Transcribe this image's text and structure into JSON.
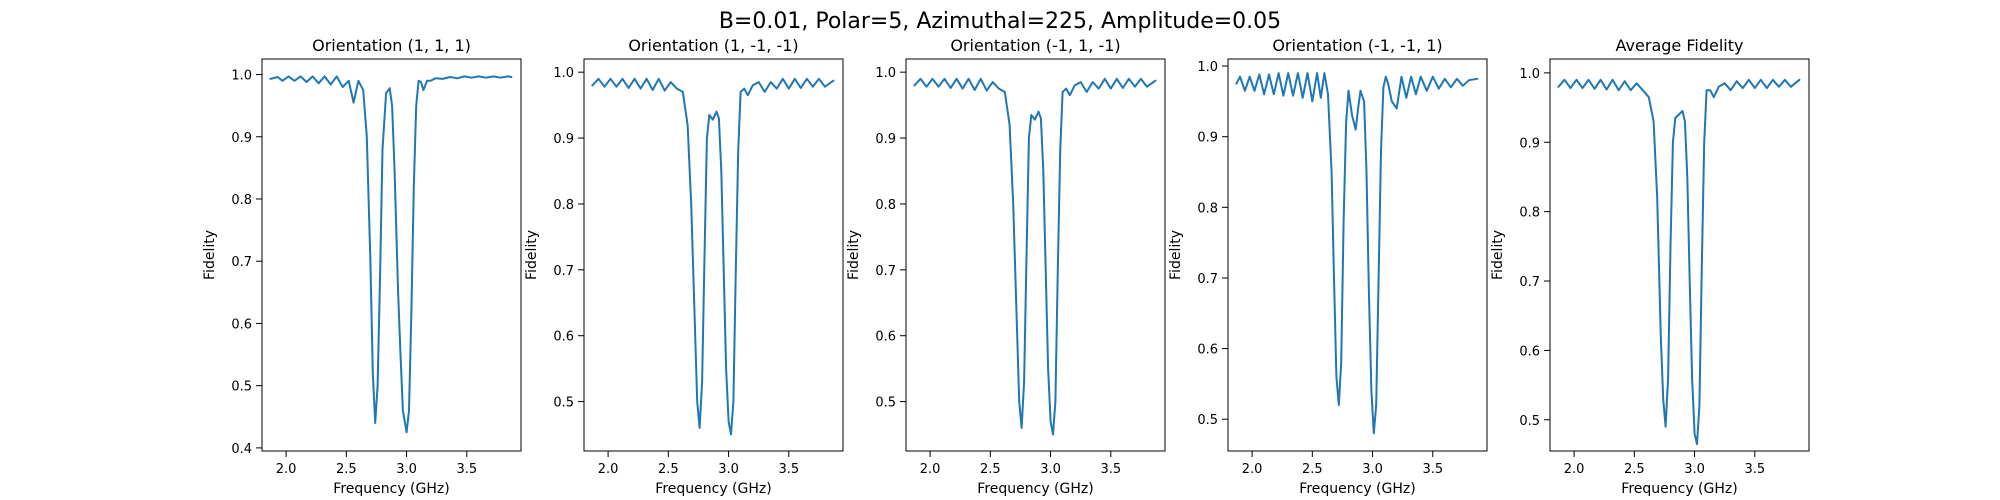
{
  "figure": {
    "suptitle": "B=0.01, Polar=5, Azimuthal=225, Amplitude=0.05"
  },
  "colors": {
    "series": "#1f77b4"
  },
  "chart_data": [
    {
      "type": "line",
      "title": "Orientation (1, 1, 1)",
      "xlabel": "Frequency (GHz)",
      "ylabel": "Fidelity",
      "xlim": [
        1.8,
        3.95
      ],
      "ylim": [
        0.395,
        1.025
      ],
      "xticks": [
        2.0,
        2.5,
        3.0,
        3.5
      ],
      "xticklabels": [
        "2.0",
        "2.5",
        "3.0",
        "3.5"
      ],
      "yticks": [
        0.4,
        0.5,
        0.6,
        0.7,
        0.8,
        0.9,
        1.0
      ],
      "yticklabels": [
        "0.4",
        "0.5",
        "0.6",
        "0.7",
        "0.8",
        "0.9",
        "1.0"
      ],
      "grid": false,
      "series": [
        {
          "x": [
            1.87,
            1.93,
            1.97,
            2.02,
            2.07,
            2.12,
            2.17,
            2.22,
            2.27,
            2.32,
            2.37,
            2.42,
            2.47,
            2.52,
            2.56,
            2.6,
            2.64,
            2.67,
            2.7,
            2.72,
            2.74,
            2.76,
            2.78,
            2.8,
            2.83,
            2.86,
            2.88,
            2.9,
            2.93,
            2.95,
            2.97,
            3.0,
            3.02,
            3.04,
            3.06,
            3.08,
            3.1,
            3.12,
            3.14,
            3.17,
            3.2,
            3.24,
            3.3,
            3.36,
            3.42,
            3.48,
            3.54,
            3.6,
            3.66,
            3.72,
            3.78,
            3.84,
            3.87
          ],
          "y": [
            0.993,
            0.996,
            0.99,
            0.997,
            0.99,
            0.997,
            0.988,
            0.997,
            0.986,
            0.997,
            0.984,
            0.997,
            0.98,
            0.99,
            0.955,
            0.99,
            0.975,
            0.9,
            0.7,
            0.52,
            0.44,
            0.5,
            0.68,
            0.88,
            0.97,
            0.978,
            0.95,
            0.85,
            0.65,
            0.55,
            0.46,
            0.425,
            0.46,
            0.62,
            0.82,
            0.95,
            0.99,
            0.988,
            0.975,
            0.99,
            0.99,
            0.994,
            0.993,
            0.996,
            0.994,
            0.997,
            0.995,
            0.997,
            0.995,
            0.997,
            0.995,
            0.997,
            0.996
          ]
        }
      ]
    },
    {
      "type": "line",
      "title": "Orientation (1, -1, -1)",
      "xlabel": "Frequency (GHz)",
      "ylabel": "Fidelity",
      "xlim": [
        1.8,
        3.95
      ],
      "ylim": [
        0.425,
        1.02
      ],
      "xticks": [
        2.0,
        2.5,
        3.0,
        3.5
      ],
      "xticklabels": [
        "2.0",
        "2.5",
        "3.0",
        "3.5"
      ],
      "yticks": [
        0.5,
        0.6,
        0.7,
        0.8,
        0.9,
        1.0
      ],
      "yticklabels": [
        "0.5",
        "0.6",
        "0.7",
        "0.8",
        "0.9",
        "1.0"
      ],
      "grid": false,
      "series": [
        {
          "x": [
            1.87,
            1.92,
            1.97,
            2.02,
            2.07,
            2.12,
            2.17,
            2.22,
            2.27,
            2.32,
            2.37,
            2.42,
            2.47,
            2.52,
            2.57,
            2.62,
            2.66,
            2.69,
            2.72,
            2.74,
            2.76,
            2.78,
            2.8,
            2.82,
            2.84,
            2.87,
            2.9,
            2.92,
            2.94,
            2.96,
            2.98,
            3.0,
            3.02,
            3.04,
            3.06,
            3.08,
            3.1,
            3.13,
            3.16,
            3.2,
            3.25,
            3.3,
            3.35,
            3.4,
            3.45,
            3.5,
            3.55,
            3.6,
            3.65,
            3.7,
            3.75,
            3.8,
            3.87
          ],
          "y": [
            0.98,
            0.99,
            0.978,
            0.99,
            0.978,
            0.99,
            0.976,
            0.99,
            0.975,
            0.99,
            0.973,
            0.99,
            0.972,
            0.985,
            0.975,
            0.97,
            0.92,
            0.8,
            0.62,
            0.5,
            0.46,
            0.53,
            0.72,
            0.9,
            0.935,
            0.928,
            0.94,
            0.93,
            0.85,
            0.7,
            0.55,
            0.47,
            0.45,
            0.5,
            0.7,
            0.88,
            0.97,
            0.975,
            0.965,
            0.98,
            0.985,
            0.97,
            0.985,
            0.975,
            0.99,
            0.975,
            0.99,
            0.976,
            0.99,
            0.978,
            0.99,
            0.978,
            0.987
          ]
        }
      ]
    },
    {
      "type": "line",
      "title": "Orientation (-1, 1, -1)",
      "xlabel": "Frequency (GHz)",
      "ylabel": "Fidelity",
      "xlim": [
        1.8,
        3.95
      ],
      "ylim": [
        0.425,
        1.02
      ],
      "xticks": [
        2.0,
        2.5,
        3.0,
        3.5
      ],
      "xticklabels": [
        "2.0",
        "2.5",
        "3.0",
        "3.5"
      ],
      "yticks": [
        0.5,
        0.6,
        0.7,
        0.8,
        0.9,
        1.0
      ],
      "yticklabels": [
        "0.5",
        "0.6",
        "0.7",
        "0.8",
        "0.9",
        "1.0"
      ],
      "grid": false,
      "series": [
        {
          "x": [
            1.87,
            1.92,
            1.97,
            2.02,
            2.07,
            2.12,
            2.17,
            2.22,
            2.27,
            2.32,
            2.37,
            2.42,
            2.47,
            2.52,
            2.57,
            2.62,
            2.66,
            2.69,
            2.72,
            2.74,
            2.76,
            2.78,
            2.8,
            2.82,
            2.84,
            2.87,
            2.9,
            2.92,
            2.94,
            2.96,
            2.98,
            3.0,
            3.02,
            3.04,
            3.06,
            3.08,
            3.1,
            3.13,
            3.16,
            3.2,
            3.25,
            3.3,
            3.35,
            3.4,
            3.45,
            3.5,
            3.55,
            3.6,
            3.65,
            3.7,
            3.75,
            3.8,
            3.87
          ],
          "y": [
            0.98,
            0.99,
            0.978,
            0.99,
            0.978,
            0.99,
            0.976,
            0.99,
            0.975,
            0.99,
            0.973,
            0.99,
            0.972,
            0.985,
            0.975,
            0.97,
            0.92,
            0.8,
            0.62,
            0.5,
            0.46,
            0.53,
            0.72,
            0.9,
            0.935,
            0.928,
            0.94,
            0.93,
            0.85,
            0.7,
            0.55,
            0.47,
            0.45,
            0.5,
            0.7,
            0.88,
            0.97,
            0.975,
            0.965,
            0.98,
            0.985,
            0.97,
            0.985,
            0.975,
            0.99,
            0.975,
            0.99,
            0.976,
            0.99,
            0.978,
            0.99,
            0.978,
            0.987
          ]
        }
      ]
    },
    {
      "type": "line",
      "title": "Orientation (-1, -1, 1)",
      "xlabel": "Frequency (GHz)",
      "ylabel": "Fidelity",
      "xlim": [
        1.8,
        3.95
      ],
      "ylim": [
        0.455,
        1.01
      ],
      "xticks": [
        2.0,
        2.5,
        3.0,
        3.5
      ],
      "xticklabels": [
        "2.0",
        "2.5",
        "3.0",
        "3.5"
      ],
      "yticks": [
        0.5,
        0.6,
        0.7,
        0.8,
        0.9,
        1.0
      ],
      "yticklabels": [
        "0.5",
        "0.6",
        "0.7",
        "0.8",
        "0.9",
        "1.0"
      ],
      "grid": false,
      "series": [
        {
          "x": [
            1.87,
            1.9,
            1.94,
            1.98,
            2.02,
            2.06,
            2.1,
            2.14,
            2.18,
            2.22,
            2.26,
            2.3,
            2.34,
            2.38,
            2.42,
            2.46,
            2.5,
            2.54,
            2.57,
            2.6,
            2.63,
            2.66,
            2.68,
            2.7,
            2.72,
            2.74,
            2.76,
            2.78,
            2.8,
            2.83,
            2.86,
            2.88,
            2.9,
            2.93,
            2.95,
            2.97,
            2.99,
            3.01,
            3.03,
            3.05,
            3.07,
            3.09,
            3.11,
            3.13,
            3.16,
            3.2,
            3.24,
            3.28,
            3.32,
            3.36,
            3.4,
            3.45,
            3.5,
            3.55,
            3.6,
            3.65,
            3.7,
            3.75,
            3.8,
            3.87
          ],
          "y": [
            0.975,
            0.985,
            0.965,
            0.985,
            0.965,
            0.988,
            0.96,
            0.988,
            0.96,
            0.99,
            0.958,
            0.99,
            0.958,
            0.99,
            0.955,
            0.99,
            0.95,
            0.99,
            0.955,
            0.99,
            0.96,
            0.85,
            0.7,
            0.56,
            0.52,
            0.58,
            0.78,
            0.92,
            0.965,
            0.93,
            0.91,
            0.94,
            0.965,
            0.95,
            0.85,
            0.68,
            0.54,
            0.48,
            0.52,
            0.7,
            0.88,
            0.97,
            0.985,
            0.975,
            0.95,
            0.94,
            0.985,
            0.955,
            0.985,
            0.96,
            0.985,
            0.965,
            0.985,
            0.968,
            0.982,
            0.97,
            0.982,
            0.972,
            0.98,
            0.982
          ]
        }
      ]
    },
    {
      "type": "line",
      "title": "Average Fidelity",
      "xlabel": "Frequency (GHz)",
      "ylabel": "Fidelity",
      "xlim": [
        1.8,
        3.95
      ],
      "ylim": [
        0.455,
        1.02
      ],
      "xticks": [
        2.0,
        2.5,
        3.0,
        3.5
      ],
      "xticklabels": [
        "2.0",
        "2.5",
        "3.0",
        "3.5"
      ],
      "yticks": [
        0.5,
        0.6,
        0.7,
        0.8,
        0.9,
        1.0
      ],
      "yticklabels": [
        "0.5",
        "0.6",
        "0.7",
        "0.8",
        "0.9",
        "1.0"
      ],
      "grid": false,
      "series": [
        {
          "x": [
            1.87,
            1.92,
            1.97,
            2.02,
            2.07,
            2.12,
            2.17,
            2.22,
            2.27,
            2.32,
            2.37,
            2.42,
            2.47,
            2.52,
            2.57,
            2.62,
            2.66,
            2.69,
            2.72,
            2.74,
            2.76,
            2.78,
            2.8,
            2.82,
            2.84,
            2.87,
            2.9,
            2.92,
            2.94,
            2.96,
            2.98,
            3.0,
            3.02,
            3.04,
            3.06,
            3.08,
            3.1,
            3.13,
            3.16,
            3.2,
            3.25,
            3.3,
            3.35,
            3.4,
            3.45,
            3.5,
            3.55,
            3.6,
            3.65,
            3.7,
            3.75,
            3.8,
            3.87
          ],
          "y": [
            0.98,
            0.99,
            0.978,
            0.99,
            0.978,
            0.99,
            0.977,
            0.99,
            0.976,
            0.99,
            0.975,
            0.988,
            0.975,
            0.985,
            0.975,
            0.965,
            0.93,
            0.82,
            0.62,
            0.53,
            0.49,
            0.56,
            0.75,
            0.9,
            0.935,
            0.94,
            0.945,
            0.93,
            0.85,
            0.7,
            0.56,
            0.48,
            0.465,
            0.52,
            0.72,
            0.9,
            0.975,
            0.975,
            0.965,
            0.98,
            0.985,
            0.975,
            0.988,
            0.978,
            0.99,
            0.978,
            0.99,
            0.978,
            0.99,
            0.98,
            0.99,
            0.98,
            0.99
          ]
        }
      ]
    }
  ]
}
